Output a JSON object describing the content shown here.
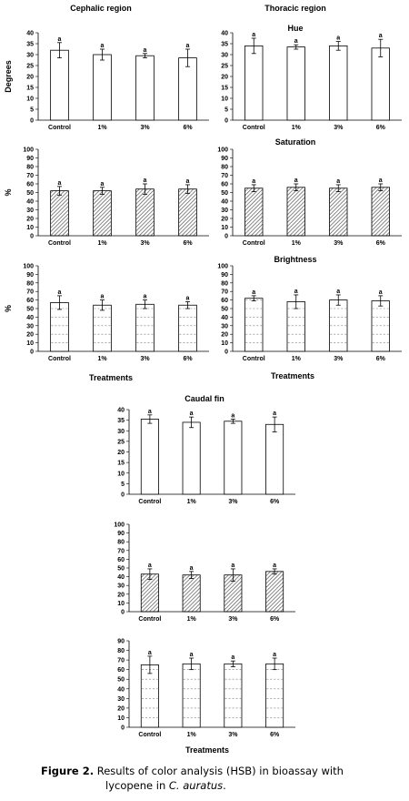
{
  "region_titles": {
    "cephalic": "Cephalic region",
    "thoracic": "Thoracic region",
    "caudal": "Caudal fin"
  },
  "row_titles": {
    "hue": "Hue",
    "saturation": "Saturation",
    "brightness": "Brightness"
  },
  "x_axis_title": "Treatments",
  "caption": {
    "label": "Figure 2.",
    "text_before": "Results of color analysis (HSB) in bioassay with",
    "text_cont": "lycopene in ",
    "species": "C. auratus",
    "end": "."
  },
  "colors": {
    "bar_stroke": "#000000",
    "hatch": "#555555",
    "grid_dash": "#777777"
  },
  "chart_data": [
    {
      "type": "bar",
      "region": "Cephalic region",
      "metric": "Hue",
      "fill": "plain",
      "categories": [
        "Control",
        "1%",
        "3%",
        "6%"
      ],
      "values": [
        32,
        30,
        29.5,
        28.5
      ],
      "errors": [
        3.5,
        2.5,
        1,
        4
      ],
      "significance": [
        "a",
        "a",
        "a",
        "a"
      ],
      "ylabel": "Degrees",
      "ylim": [
        0,
        40
      ],
      "yticks": [
        0,
        5,
        10,
        15,
        20,
        25,
        30,
        35,
        40
      ]
    },
    {
      "type": "bar",
      "region": "Thoracic region",
      "metric": "Hue",
      "fill": "plain",
      "categories": [
        "Control",
        "1%",
        "3%",
        "6%"
      ],
      "values": [
        34,
        33.5,
        34,
        33
      ],
      "errors": [
        3.5,
        1,
        2,
        4
      ],
      "significance": [
        "a",
        "a",
        "a",
        "a"
      ],
      "ylabel": "",
      "ylim": [
        0,
        40
      ],
      "yticks": [
        0,
        5,
        10,
        15,
        20,
        25,
        30,
        35,
        40
      ]
    },
    {
      "type": "bar",
      "region": "Cephalic region",
      "metric": "Saturation",
      "fill": "hatch",
      "categories": [
        "Control",
        "1%",
        "3%",
        "6%"
      ],
      "values": [
        52,
        52,
        54,
        54
      ],
      "errors": [
        5,
        4,
        6,
        5
      ],
      "significance": [
        "a",
        "a",
        "a",
        "a"
      ],
      "ylabel": "%",
      "ylim": [
        0,
        100
      ],
      "yticks": [
        0,
        10,
        20,
        30,
        40,
        50,
        60,
        70,
        80,
        90,
        100
      ]
    },
    {
      "type": "bar",
      "region": "Thoracic region",
      "metric": "Saturation",
      "fill": "hatch",
      "categories": [
        "Control",
        "1%",
        "3%",
        "6%"
      ],
      "values": [
        55,
        56,
        55,
        56
      ],
      "errors": [
        4,
        4,
        4,
        4
      ],
      "significance": [
        "a",
        "a",
        "a",
        "a"
      ],
      "ylabel": "",
      "ylim": [
        0,
        100
      ],
      "yticks": [
        0,
        10,
        20,
        30,
        40,
        50,
        60,
        70,
        80,
        90,
        100
      ]
    },
    {
      "type": "bar",
      "region": "Cephalic region",
      "metric": "Brightness",
      "fill": "dash",
      "categories": [
        "Control",
        "1%",
        "3%",
        "6%"
      ],
      "values": [
        57,
        54,
        55,
        54
      ],
      "errors": [
        8,
        6,
        5,
        4
      ],
      "significance": [
        "a",
        "a",
        "a",
        "a"
      ],
      "ylabel": "%",
      "ylim": [
        0,
        100
      ],
      "yticks": [
        0,
        10,
        20,
        30,
        40,
        50,
        60,
        70,
        80,
        90,
        100
      ]
    },
    {
      "type": "bar",
      "region": "Thoracic region",
      "metric": "Brightness",
      "fill": "dash",
      "categories": [
        "Control",
        "1%",
        "3%",
        "6%"
      ],
      "values": [
        62,
        58,
        60,
        59
      ],
      "errors": [
        3,
        8,
        6,
        6
      ],
      "significance": [
        "a",
        "a",
        "a",
        "a"
      ],
      "ylabel": "",
      "ylim": [
        0,
        100
      ],
      "yticks": [
        0,
        10,
        20,
        30,
        40,
        50,
        60,
        70,
        80,
        90,
        100
      ]
    },
    {
      "type": "bar",
      "region": "Caudal fin",
      "metric": "Hue",
      "fill": "plain",
      "categories": [
        "Control",
        "1%",
        "3%",
        "6%"
      ],
      "values": [
        35.5,
        34,
        34.5,
        33
      ],
      "errors": [
        2,
        2.5,
        1,
        3.5
      ],
      "significance": [
        "a",
        "a",
        "a",
        "a"
      ],
      "ylabel": "",
      "ylim": [
        0,
        40
      ],
      "yticks": [
        0,
        5,
        10,
        15,
        20,
        25,
        30,
        35,
        40
      ]
    },
    {
      "type": "bar",
      "region": "Caudal fin",
      "metric": "Saturation",
      "fill": "hatch",
      "categories": [
        "Control",
        "1%",
        "3%",
        "6%"
      ],
      "values": [
        43,
        42,
        42,
        46
      ],
      "errors": [
        6,
        4,
        7,
        3
      ],
      "significance": [
        "a",
        "a",
        "a",
        "a"
      ],
      "ylabel": "",
      "ylim": [
        0,
        100
      ],
      "yticks": [
        0,
        10,
        20,
        30,
        40,
        50,
        60,
        70,
        80,
        90,
        100
      ]
    },
    {
      "type": "bar",
      "region": "Caudal fin",
      "metric": "Brightness",
      "fill": "dash",
      "categories": [
        "Control",
        "1%",
        "3%",
        "6%"
      ],
      "values": [
        65,
        66,
        66,
        66
      ],
      "errors": [
        9,
        6,
        3,
        6
      ],
      "significance": [
        "a",
        "a",
        "a",
        "a"
      ],
      "ylabel": "",
      "ylim": [
        0,
        90
      ],
      "yticks": [
        0,
        10,
        20,
        30,
        40,
        50,
        60,
        70,
        80,
        90
      ]
    }
  ]
}
